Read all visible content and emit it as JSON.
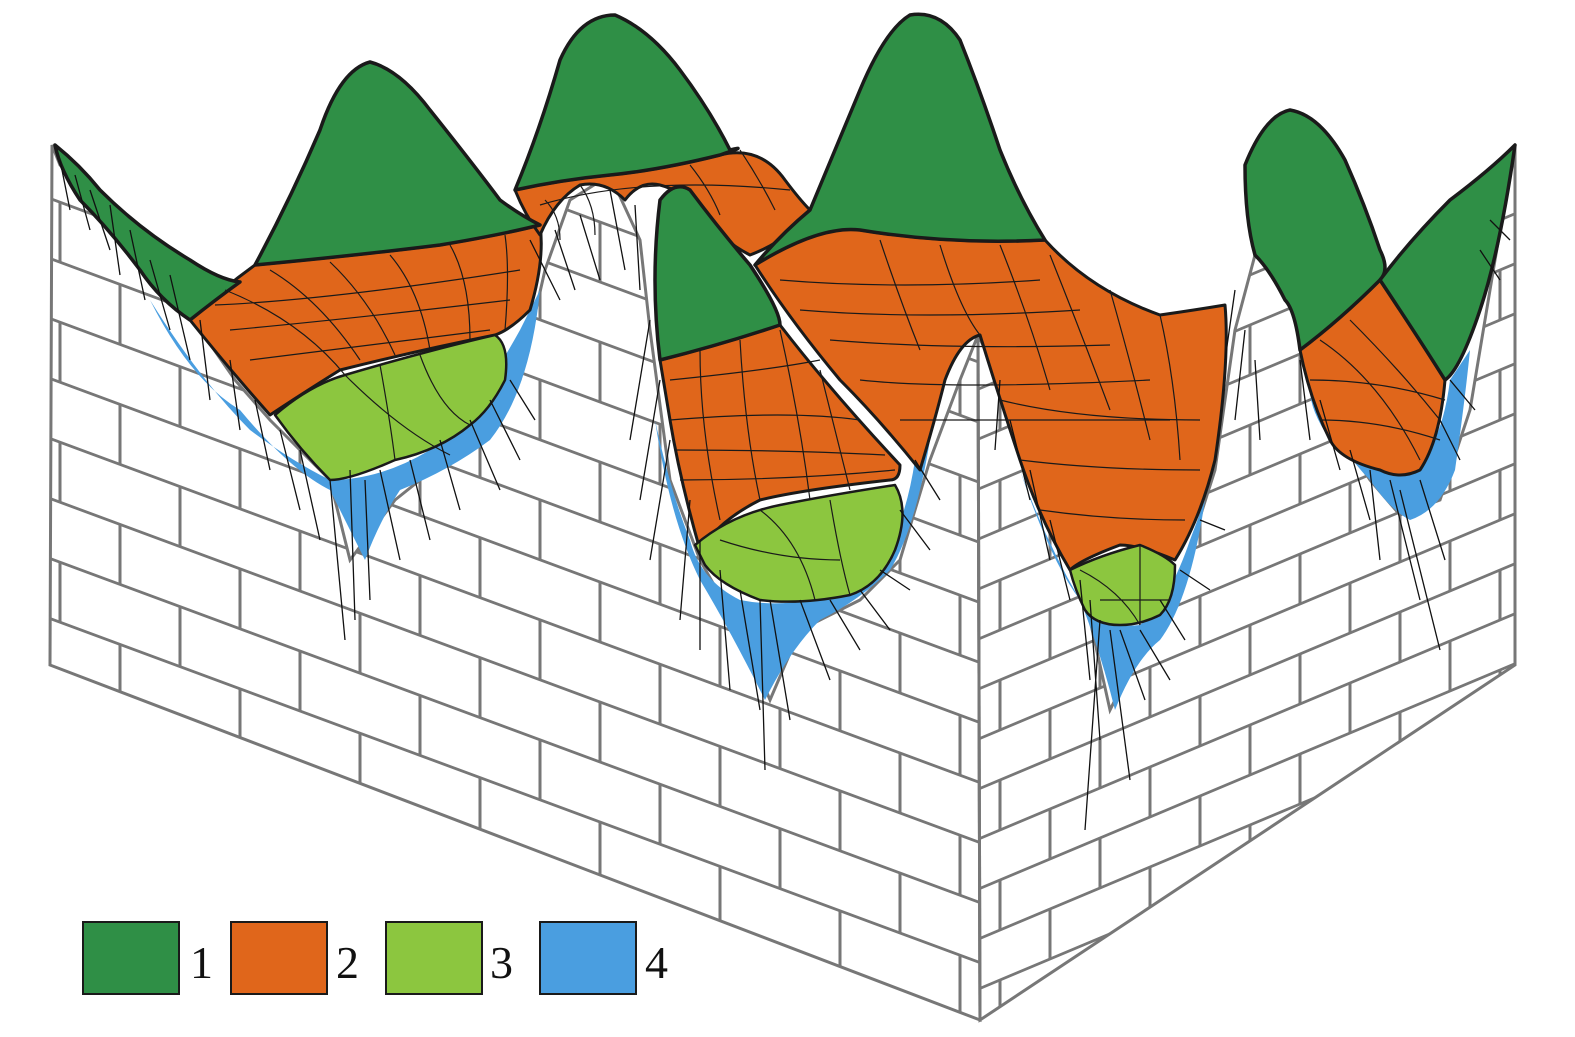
{
  "figure": {
    "colors": {
      "background": "#ffffff",
      "brick_face": "#ffffff",
      "brick_line": "#777777",
      "outline": "#1a1a1a",
      "root": "#111111"
    }
  },
  "legend": [
    {
      "id": "1",
      "label": "1",
      "color": "#2f8f46"
    },
    {
      "id": "2",
      "label": "2",
      "color": "#e0661b"
    },
    {
      "id": "3",
      "label": "3",
      "color": "#8cc63f"
    },
    {
      "id": "4",
      "label": "4",
      "color": "#4a9ee0"
    }
  ]
}
